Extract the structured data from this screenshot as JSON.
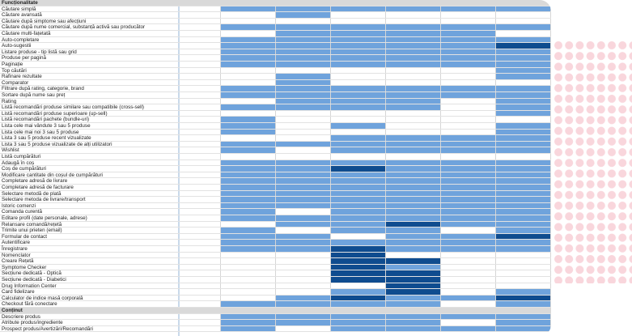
{
  "colors": {
    "L": "#6fa3dc",
    "D": "#0f4c8f",
    "W": "#ffffff"
  },
  "sections": [
    {
      "title": "Funcționalitate",
      "rows": [
        {
          "label": "Căutare simplă",
          "cells": "LLLLLL"
        },
        {
          "label": "Căutare avansată",
          "cells": "WLWWWW"
        },
        {
          "label": "Căutare după simptome sau afecțiuni",
          "cells": "WWWWWW"
        },
        {
          "label": "Căutare după nume comercial, substanță activă sau producător",
          "cells": "LLLLLL"
        },
        {
          "label": "Căutare multi-fațetată",
          "cells": "WLLLLW"
        },
        {
          "label": "Auto-completare",
          "cells": "LLLLLL"
        },
        {
          "label": "Auto-sugestii",
          "cells": "LLLLLD"
        },
        {
          "label": "Listare produse - tip listă sau grid",
          "cells": "LLLLLL"
        },
        {
          "label": "Produse per pagină",
          "cells": "LLLLLL"
        },
        {
          "label": "Paginație",
          "cells": "LLLLLL"
        },
        {
          "label": "Top căutări",
          "cells": "WWWWWL"
        },
        {
          "label": "Rafinare rezultate",
          "cells": "WLWWWL"
        },
        {
          "label": "Comparator",
          "cells": "WLWWWW"
        },
        {
          "label": "Filtrare după rating, categorie, brand",
          "cells": "LLLLLL"
        },
        {
          "label": "Sortare după nume sau preț",
          "cells": "LLLLLL"
        },
        {
          "label": "Rating",
          "cells": "WLLLWL"
        },
        {
          "label": "Listă recomandări produse similare sau compatibile (cross-sell)",
          "cells": "LLLLWL"
        },
        {
          "label": "Listă recomandări produse superioare (up-sell)",
          "cells": "WWWWWL"
        },
        {
          "label": "Listă recomandări pachete (bundle-uri)",
          "cells": "LWWWWW"
        },
        {
          "label": "Lista cele mai vândute 3 sau 5 produse",
          "cells": "LWLWWL"
        },
        {
          "label": "Lista cele mai noi 3 sau 5 produse",
          "cells": "LWWWWL"
        },
        {
          "label": "Lista 3 sau 5 produse recent vizualizate",
          "cells": "WWLLLL"
        },
        {
          "label": "Lista 3 sau 5 produse vizualizate de alți utilizatori",
          "cells": "LLLLLL"
        },
        {
          "label": "Wishlist",
          "cells": "LWLLLL"
        },
        {
          "label": "Listă cumpărături",
          "cells": "WWWWWW"
        },
        {
          "label": "Adaugă în coș",
          "cells": "LLLLLL"
        },
        {
          "label": "Coș de cumpărături",
          "cells": "LLDLLL"
        },
        {
          "label": "Modificare cantitate din coșul de cumpărături",
          "cells": "LLLLLL"
        },
        {
          "label": "Completare adresă de livrare",
          "cells": "LLLLLL"
        },
        {
          "label": "Completare adresă de facturare",
          "cells": "LLLLLL"
        },
        {
          "label": "Selectare metodă de plată",
          "cells": "LLLLLL"
        },
        {
          "label": "Selectare metoda de livrare/transport",
          "cells": "LLLLLL"
        },
        {
          "label": "Istoric comenzi",
          "cells": "LLLLLL"
        },
        {
          "label": "Comanda curentă",
          "cells": "LWLLLL"
        },
        {
          "label": "Editare profil (date personale, adrese)",
          "cells": "LLLLLL"
        },
        {
          "label": "Relansare comandă/rețetă",
          "cells": "WLLDLL"
        },
        {
          "label": "Trimite unui prieten (email)",
          "cells": "LWLLWL"
        },
        {
          "label": "Formular de contact",
          "cells": "LLWLLD"
        },
        {
          "label": "Autentificare",
          "cells": "LLLLLL"
        },
        {
          "label": "Înregistrare",
          "cells": "LLDLLL"
        },
        {
          "label": "Nomenclator",
          "cells": "WWDWWW"
        },
        {
          "label": "Creare Rețetă",
          "cells": "WWDDWW"
        },
        {
          "label": "Symptome Checker",
          "cells": "WWDLWW"
        },
        {
          "label": "Secțiune dedicată - Optică",
          "cells": "WWDDWW"
        },
        {
          "label": "Secțiune dedicată - Diabetici",
          "cells": "WWDDWW"
        },
        {
          "label": "Drug Information Center",
          "cells": "WWWDWW"
        },
        {
          "label": "Card fidelizare",
          "cells": "WWLDWL"
        },
        {
          "label": "Calculator de indice masă corporală",
          "cells": "WLDLLD"
        },
        {
          "label": "Checkout fără conectare",
          "cells": "LLLLWL"
        }
      ]
    },
    {
      "title": "Conținut",
      "rows": [
        {
          "label": "Descriere produs",
          "cells": "LLLLLL"
        },
        {
          "label": "Atribute produs/ingrediente",
          "cells": "LLLLWL"
        },
        {
          "label": "Prospect produs/Avertizări/Recomandări",
          "cells": "LWLLLL"
        }
      ]
    }
  ]
}
